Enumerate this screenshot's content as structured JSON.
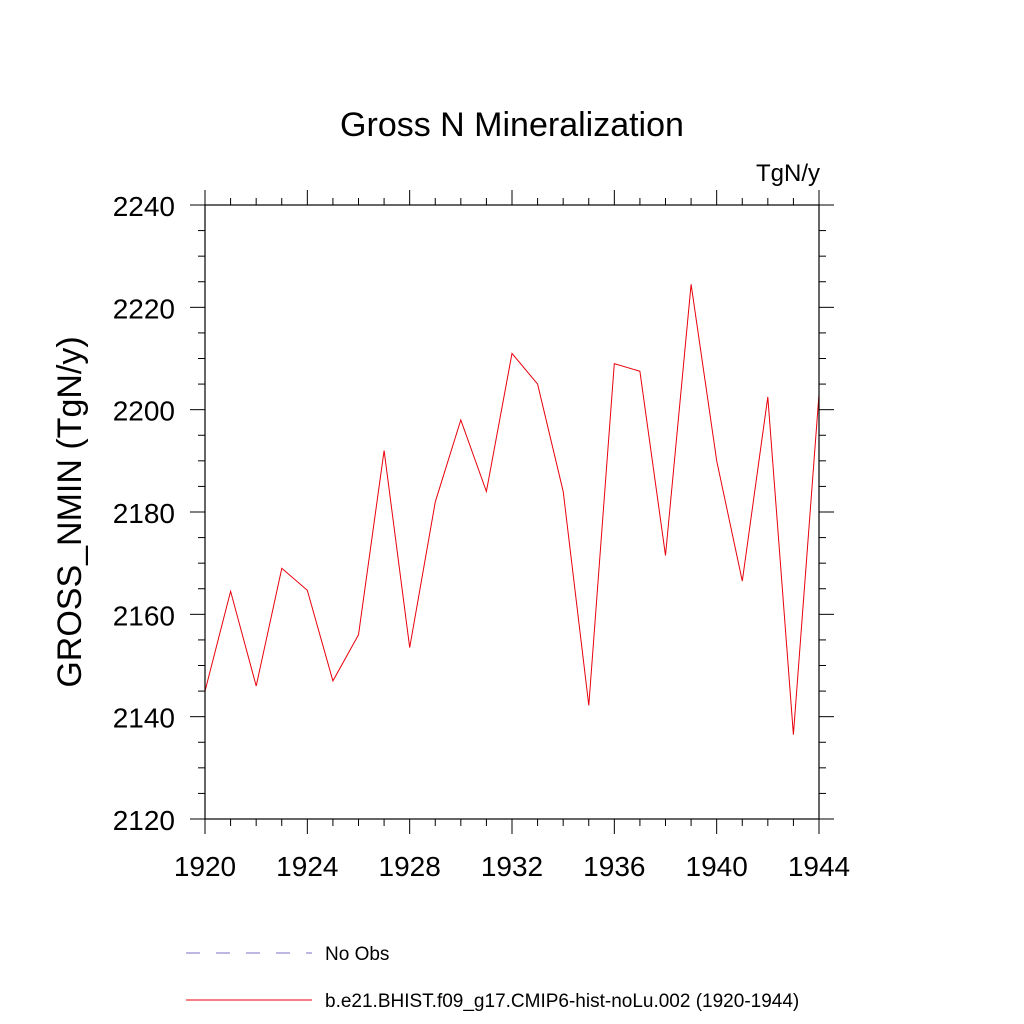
{
  "chart_data": {
    "type": "line",
    "title": "Gross N Mineralization",
    "units_label": "TgN/y",
    "ylabel": "GROSS_NMIN  (TgN/y)",
    "xlabel": "",
    "xlim": [
      1920,
      1944
    ],
    "ylim": [
      2120,
      2240
    ],
    "xticks": [
      1920,
      1924,
      1928,
      1932,
      1936,
      1940,
      1944
    ],
    "yticks": [
      2120,
      2140,
      2160,
      2180,
      2200,
      2220,
      2240
    ],
    "grid": false,
    "legend_position": "bottom",
    "series": [
      {
        "name": "No Obs",
        "color": "#7b6fc4",
        "style": "dashed",
        "x": [],
        "y": []
      },
      {
        "name": "b.e21.BHIST.f09_g17.CMIP6-hist-noLu.002 (1920-1944)",
        "color": "#e8000b",
        "style": "solid",
        "x": [
          1920,
          1921,
          1922,
          1923,
          1924,
          1925,
          1926,
          1927,
          1928,
          1929,
          1930,
          1931,
          1932,
          1933,
          1934,
          1935,
          1936,
          1937,
          1938,
          1939,
          1940,
          1941,
          1942,
          1943,
          1944
        ],
        "y": [
          2145,
          2164.5,
          2146,
          2169,
          2164.7,
          2147,
          2156,
          2192,
          2153.5,
          2182,
          2198,
          2184,
          2211,
          2205,
          2184,
          2142.2,
          2209,
          2207.5,
          2171.5,
          2224.5,
          2190,
          2166.5,
          2202.5,
          2136.5,
          2203
        ]
      }
    ]
  }
}
